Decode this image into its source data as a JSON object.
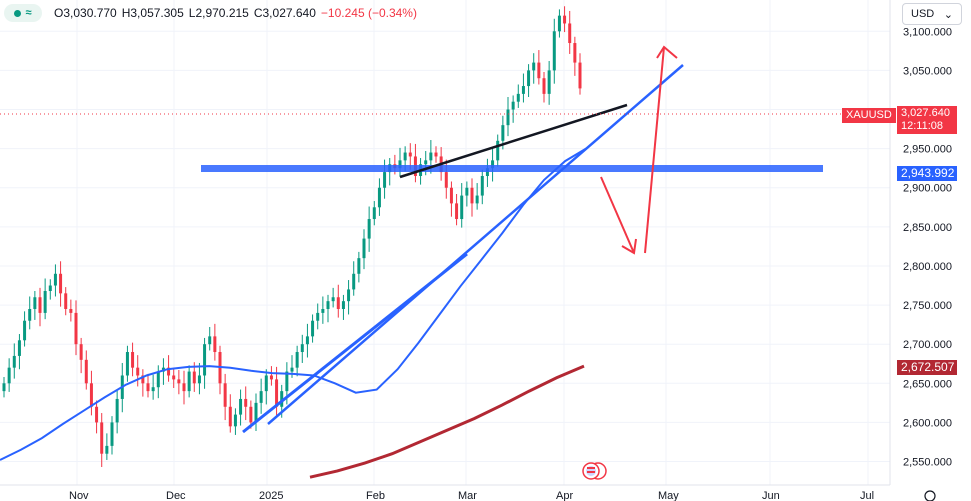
{
  "header": {
    "symbol_button_icon": "wave-icon",
    "open": "O3,030.770",
    "high": "H3,057.305",
    "low": "L2,970.215",
    "close": "C3,027.640",
    "change": "−10.245 (−0.34%)"
  },
  "currency": "USD",
  "price_tags": {
    "symbol": "XAUUSD",
    "last_price": "3,027.640",
    "countdown": "12:11:08",
    "blue_level": "2,943.992",
    "red_level": "2,672.507"
  },
  "chart_data": {
    "type": "candlestick",
    "title": "",
    "xlabel": "",
    "ylabel": "",
    "ylim": [
      2520,
      3140
    ],
    "y_ticks": [
      2550,
      2600,
      2650,
      2700,
      2750,
      2800,
      2850,
      2900,
      2950,
      3000,
      3050,
      3100
    ],
    "y_tick_labels": [
      "2,550.000",
      "2,600.000",
      "2,650.000",
      "2,700.000",
      "2,750.000",
      "2,800.000",
      "2,850.000",
      "2,900.000",
      "2,950.000",
      "3,000.000",
      "3,050.000",
      "3,100.000"
    ],
    "x_ticks": [
      "Nov",
      "Dec",
      "2025",
      "Feb",
      "Mar",
      "Apr",
      "May",
      "Jun",
      "Jul"
    ],
    "candles_close": [
      2650,
      2670,
      2685,
      2705,
      2730,
      2745,
      2760,
      2740,
      2768,
      2775,
      2790,
      2765,
      2745,
      2740,
      2700,
      2680,
      2650,
      2620,
      2600,
      2560,
      2570,
      2600,
      2630,
      2660,
      2690,
      2670,
      2660,
      2650,
      2640,
      2645,
      2665,
      2670,
      2660,
      2655,
      2650,
      2640,
      2665,
      2650,
      2660,
      2700,
      2710,
      2690,
      2650,
      2620,
      2595,
      2610,
      2630,
      2620,
      2600,
      2625,
      2640,
      2660,
      2655,
      2620,
      2640,
      2665,
      2670,
      2690,
      2700,
      2710,
      2730,
      2740,
      2745,
      2755,
      2760,
      2745,
      2755,
      2770,
      2790,
      2810,
      2835,
      2860,
      2875,
      2900,
      2920,
      2930,
      2925,
      2935,
      2945,
      2940,
      2915,
      2930,
      2935,
      2945,
      2940,
      2920,
      2900,
      2880,
      2860,
      2890,
      2900,
      2880,
      2890,
      2915,
      2925,
      2935,
      2960,
      2980,
      3000,
      3010,
      3020,
      3030,
      3050,
      3060,
      3040,
      3020,
      3050,
      3100,
      3120,
      3110,
      3085,
      3060,
      3027
    ],
    "series": [
      {
        "name": "",
        "type": "moving_average",
        "color": "#2962ff",
        "values": [
          2552,
          2565,
          2580,
          2598,
          2615,
          2632,
          2648,
          2660,
          2668,
          2671,
          2672,
          2670,
          2666,
          2663,
          2662,
          2660,
          2650,
          2638,
          2642,
          2668,
          2702,
          2738,
          2774,
          2808,
          2842,
          2878,
          2910,
          2934,
          2950
        ]
      },
      {
        "name": "",
        "type": "moving_average",
        "color": "#b22833",
        "values": [
          2530,
          2538,
          2548,
          2560,
          2575,
          2590,
          2605,
          2622,
          2640,
          2657,
          2672
        ]
      }
    ],
    "horizontal_levels": [
      2944
    ],
    "annotations": [
      "blue support band",
      "rising trend lines",
      "red projected arrow path"
    ]
  }
}
